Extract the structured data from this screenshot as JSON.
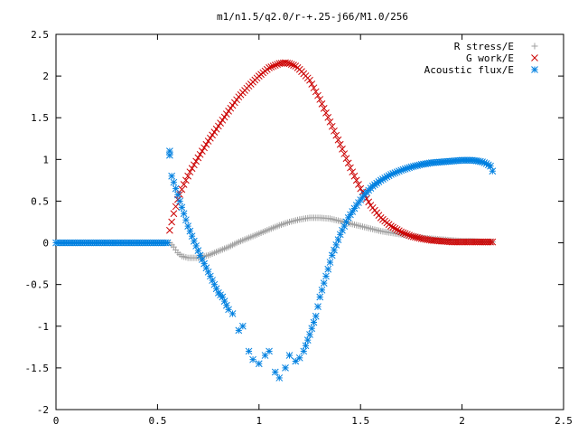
{
  "chart_data": {
    "type": "scatter",
    "title": "m1/n1.5/q2.0/r-+.25-j66/M1.0/256",
    "xlabel": "",
    "ylabel": "",
    "xlim": [
      0,
      2.5
    ],
    "ylim": [
      -2,
      2.5
    ],
    "x_ticks": [
      "0",
      "0.5",
      "1",
      "1.5",
      "2",
      "2.5"
    ],
    "y_ticks": [
      "-2",
      "-1.5",
      "-1",
      "-0.5",
      "0",
      "0.5",
      "1",
      "1.5",
      "2",
      "2.5"
    ],
    "grid": false,
    "legend_position": "top-right",
    "series": [
      {
        "name": "R stress/E",
        "marker": "plus",
        "color": "#a0a0a0",
        "x": [
          0.56,
          0.58,
          0.6,
          0.62,
          0.65,
          0.7,
          0.75,
          0.8,
          0.85,
          0.9,
          0.95,
          1.0,
          1.05,
          1.1,
          1.15,
          1.2,
          1.25,
          1.3,
          1.35,
          1.4,
          1.45,
          1.5,
          1.55,
          1.6,
          1.65,
          1.7,
          1.75,
          1.8,
          1.85,
          1.9,
          1.95,
          2.0,
          2.05,
          2.1,
          2.15
        ],
        "y": [
          0.0,
          -0.05,
          -0.12,
          -0.16,
          -0.18,
          -0.18,
          -0.15,
          -0.1,
          -0.05,
          0.01,
          0.06,
          0.11,
          0.16,
          0.21,
          0.25,
          0.28,
          0.3,
          0.3,
          0.29,
          0.26,
          0.23,
          0.2,
          0.17,
          0.14,
          0.12,
          0.1,
          0.08,
          0.06,
          0.05,
          0.04,
          0.03,
          0.02,
          0.02,
          0.01,
          0.01
        ]
      },
      {
        "name": "G work/E",
        "marker": "cross",
        "color": "#cc0000",
        "x": [
          0.56,
          0.58,
          0.6,
          0.63,
          0.66,
          0.7,
          0.75,
          0.8,
          0.85,
          0.9,
          0.95,
          1.0,
          1.05,
          1.1,
          1.13,
          1.15,
          1.18,
          1.2,
          1.25,
          1.3,
          1.35,
          1.4,
          1.45,
          1.5,
          1.55,
          1.6,
          1.65,
          1.7,
          1.75,
          1.8,
          1.85,
          1.9,
          1.95,
          2.0,
          2.05,
          2.1,
          2.15
        ],
        "y": [
          0.15,
          0.35,
          0.52,
          0.7,
          0.85,
          1.02,
          1.22,
          1.4,
          1.58,
          1.75,
          1.88,
          2.0,
          2.1,
          2.15,
          2.16,
          2.15,
          2.12,
          2.08,
          1.95,
          1.72,
          1.45,
          1.18,
          0.9,
          0.65,
          0.45,
          0.3,
          0.2,
          0.13,
          0.08,
          0.05,
          0.03,
          0.02,
          0.01,
          0.01,
          0.01,
          0.01,
          0.01
        ]
      },
      {
        "name": "Acoustic flux/E",
        "marker": "star",
        "color": "#0080e0",
        "x": [
          0.0,
          0.03,
          0.06,
          0.09,
          0.12,
          0.15,
          0.18,
          0.21,
          0.24,
          0.27,
          0.3,
          0.33,
          0.36,
          0.39,
          0.42,
          0.45,
          0.48,
          0.51,
          0.54,
          0.55,
          0.56,
          0.56,
          0.57,
          0.59,
          0.61,
          0.63,
          0.65,
          0.68,
          0.71,
          0.74,
          0.77,
          0.8,
          0.82,
          0.85,
          0.87,
          0.9,
          0.92,
          0.95,
          0.97,
          1.0,
          1.03,
          1.05,
          1.08,
          1.1,
          1.13,
          1.15,
          1.18,
          1.2,
          1.22,
          1.25,
          1.28,
          1.3,
          1.33,
          1.36,
          1.4,
          1.44,
          1.48,
          1.52,
          1.56,
          1.6,
          1.65,
          1.7,
          1.75,
          1.8,
          1.85,
          1.9,
          1.95,
          2.0,
          2.05,
          2.08,
          2.1,
          2.12,
          2.14,
          2.15
        ],
        "y": [
          0.0,
          0.0,
          0.0,
          0.0,
          0.0,
          0.0,
          0.0,
          0.0,
          0.0,
          0.0,
          0.0,
          0.0,
          0.0,
          0.0,
          0.0,
          0.0,
          0.0,
          0.0,
          0.0,
          0.0,
          1.05,
          1.1,
          0.8,
          0.65,
          0.5,
          0.35,
          0.2,
          0.02,
          -0.15,
          -0.3,
          -0.45,
          -0.6,
          -0.65,
          -0.8,
          -0.85,
          -1.05,
          -1.0,
          -1.3,
          -1.4,
          -1.45,
          -1.35,
          -1.3,
          -1.55,
          -1.62,
          -1.5,
          -1.35,
          -1.42,
          -1.38,
          -1.3,
          -1.1,
          -0.88,
          -0.65,
          -0.4,
          -0.15,
          0.1,
          0.3,
          0.45,
          0.58,
          0.68,
          0.75,
          0.82,
          0.87,
          0.91,
          0.94,
          0.96,
          0.97,
          0.98,
          0.99,
          0.99,
          0.98,
          0.97,
          0.95,
          0.92,
          0.86
        ]
      }
    ]
  }
}
